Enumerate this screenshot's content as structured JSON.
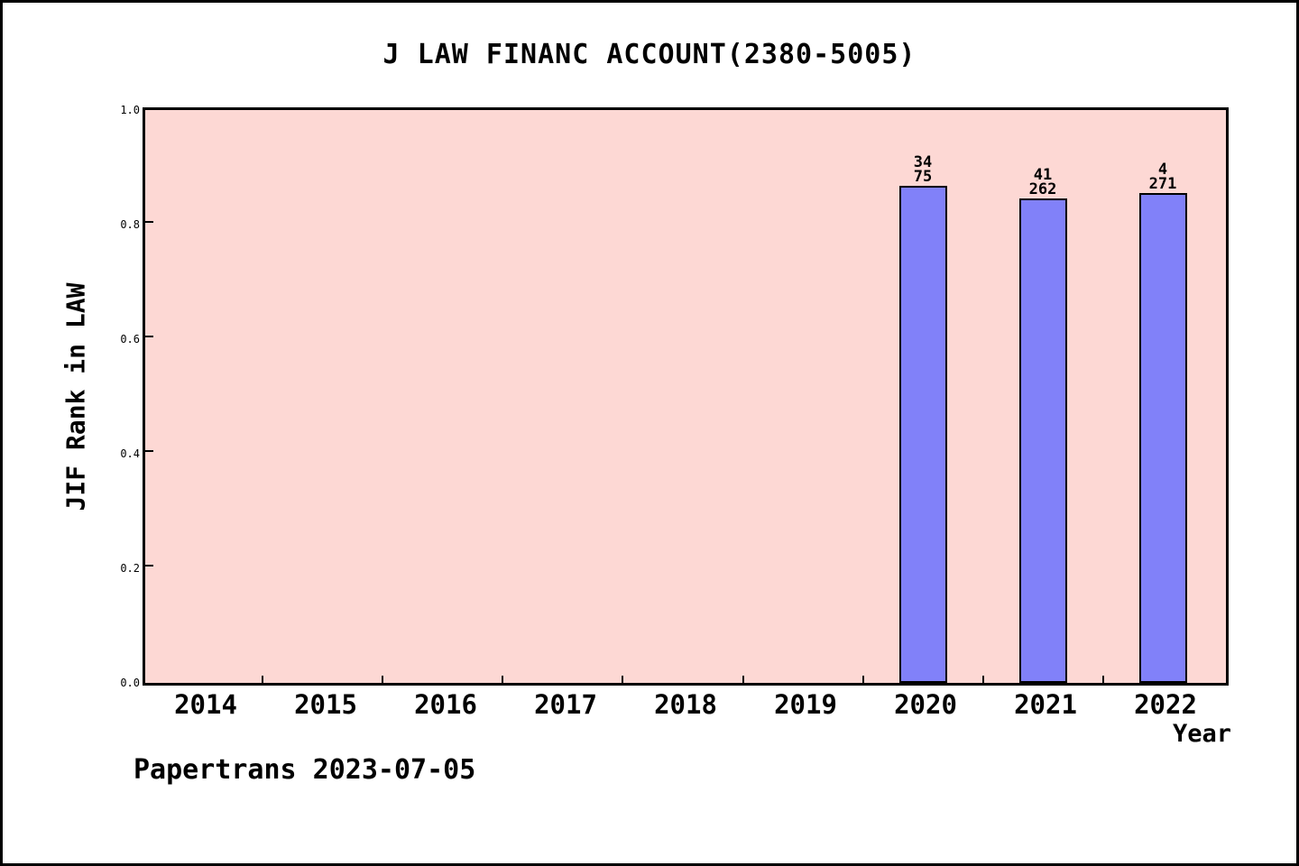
{
  "title": "J LAW FINANC ACCOUNT(2380-5005)",
  "footer": {
    "text": "Papertrans 2023-07-05"
  },
  "chart_data": {
    "type": "bar",
    "title": "J LAW FINANC ACCOUNT(2380-5005)",
    "xlabel": "Year",
    "ylabel": "JIF Rank in LAW",
    "categories": [
      "2014",
      "2015",
      "2016",
      "2017",
      "2018",
      "2019",
      "2020",
      "2021",
      "2022"
    ],
    "values": [
      null,
      null,
      null,
      null,
      null,
      null,
      0.868,
      0.845,
      0.855
    ],
    "bar_labels": [
      null,
      null,
      null,
      null,
      null,
      null,
      [
        "34",
        "75"
      ],
      [
        "41",
        "262"
      ],
      [
        "4",
        "271"
      ]
    ],
    "bars": [
      {
        "category": "2020",
        "rank": "34",
        "total": "75",
        "value": 0.868
      },
      {
        "category": "2021",
        "rank": "41",
        "total": "262",
        "value": 0.845
      },
      {
        "category": "2022",
        "rank": "4",
        "total": "271",
        "value": 0.855
      }
    ],
    "yticks": [
      0.0,
      0.2,
      0.4,
      0.6,
      0.8,
      1.0
    ],
    "ytick_labels": [
      "0.0",
      "0.2",
      "0.4",
      "0.6",
      "0.8",
      "1.0"
    ],
    "ylim": [
      0,
      1
    ],
    "grid": false,
    "legend_position": "none",
    "colors": {
      "bar_fill": "#8181f9",
      "bar_edge": "#000000",
      "plot_bg": "#fdd8d4",
      "page_bg": "#ffffff",
      "text": "#000000",
      "axis": "#000000"
    }
  }
}
